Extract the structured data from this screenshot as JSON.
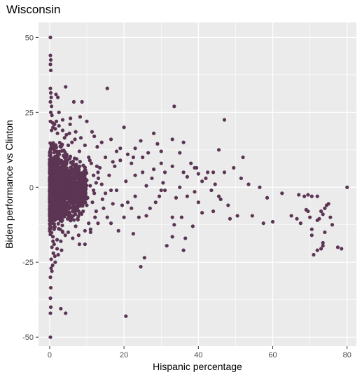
{
  "chart_data": {
    "type": "scatter",
    "title": "Wisconsin",
    "xlabel": "Hispanic percentage",
    "ylabel": "Biden performance vs Clinton",
    "xlim": [
      -3,
      82.5
    ],
    "ylim": [
      -53,
      55
    ],
    "x_ticks": [
      0,
      20,
      40,
      60,
      80
    ],
    "y_ticks": [
      50,
      25,
      0,
      -25,
      -50
    ],
    "x_tick_labels": [
      "0",
      "20",
      "40",
      "60",
      "80"
    ],
    "y_tick_labels": [
      "50",
      "25",
      "0",
      "-25",
      "-50"
    ],
    "grid": true,
    "legend": "none",
    "colors": {
      "panel": "#ebebeb",
      "grid_major": "#ffffff",
      "point": "#5b3553",
      "tick_text": "#4d4d4d",
      "tick_mark": "#333333"
    },
    "points": [
      [
        0.2,
        50
      ],
      [
        0.2,
        44
      ],
      [
        0.3,
        42.5
      ],
      [
        0.2,
        41
      ],
      [
        0.3,
        39
      ],
      [
        0.2,
        33
      ],
      [
        0.3,
        31.5
      ],
      [
        0.4,
        30
      ],
      [
        0.2,
        28.5
      ],
      [
        0.5,
        27
      ],
      [
        0.3,
        25
      ],
      [
        0.6,
        24
      ],
      [
        0.2,
        22
      ],
      [
        0.8,
        21.5
      ],
      [
        0.4,
        -27
      ],
      [
        0.6,
        -28
      ],
      [
        0.2,
        -30
      ],
      [
        0.3,
        -33.5
      ],
      [
        0.2,
        -37
      ],
      [
        0.3,
        -40
      ],
      [
        0.2,
        -42
      ],
      [
        0.2,
        -50
      ],
      [
        0.8,
        -26
      ],
      [
        1.5,
        -25
      ],
      [
        3,
        -40.5
      ],
      [
        4.3,
        -42
      ],
      [
        4.3,
        33.5
      ],
      [
        1.7,
        31
      ],
      [
        2.2,
        30
      ],
      [
        6.5,
        28.5
      ],
      [
        8.7,
        28.5
      ],
      [
        5.6,
        23
      ],
      [
        2.5,
        25
      ],
      [
        3.5,
        22.5
      ],
      [
        8.2,
        23.5
      ],
      [
        10,
        22
      ],
      [
        11.4,
        18.5
      ],
      [
        12,
        17
      ],
      [
        15.5,
        33
      ],
      [
        20,
        20
      ],
      [
        16.5,
        16
      ],
      [
        14,
        15
      ],
      [
        19,
        13
      ],
      [
        21,
        11
      ],
      [
        25,
        10
      ],
      [
        17,
        8.5
      ],
      [
        24.5,
        15.5
      ],
      [
        28,
        18
      ],
      [
        33.5,
        27
      ],
      [
        29,
        14.5
      ],
      [
        30,
        12
      ],
      [
        33,
        16
      ],
      [
        36,
        15
      ],
      [
        35,
        11.5
      ],
      [
        47,
        22.5
      ],
      [
        45.5,
        12.5
      ],
      [
        52,
        10
      ],
      [
        42.5,
        5
      ],
      [
        49.5,
        6.5
      ],
      [
        38,
        8
      ],
      [
        39,
        6.5
      ],
      [
        39.5,
        6.5
      ],
      [
        40,
        4.5
      ],
      [
        44,
        5
      ],
      [
        47,
        5
      ],
      [
        51.5,
        3
      ],
      [
        53.5,
        1
      ],
      [
        56.5,
        0
      ],
      [
        58.5,
        -3.5
      ],
      [
        62.5,
        -2
      ],
      [
        67,
        -2.5
      ],
      [
        68.5,
        -3
      ],
      [
        69.5,
        -2.5
      ],
      [
        70.5,
        -3
      ],
      [
        72,
        -3
      ],
      [
        80,
        0
      ],
      [
        57.5,
        -12
      ],
      [
        65,
        -9.5
      ],
      [
        66.5,
        -10.5
      ],
      [
        67.5,
        -12
      ],
      [
        69,
        -7.5
      ],
      [
        69.5,
        -8
      ],
      [
        70,
        -10
      ],
      [
        70.5,
        -16
      ],
      [
        70.5,
        -14
      ],
      [
        72,
        -11
      ],
      [
        72.5,
        -10.5
      ],
      [
        73,
        -8
      ],
      [
        73.5,
        -9
      ],
      [
        74,
        -7
      ],
      [
        74.5,
        -6
      ],
      [
        75,
        -5.5
      ],
      [
        75.5,
        -10
      ],
      [
        76,
        -12.5
      ],
      [
        74,
        -15
      ],
      [
        73.5,
        -18.5
      ],
      [
        73.5,
        -19.5
      ],
      [
        73,
        -20.5
      ],
      [
        72,
        -21
      ],
      [
        71,
        -22.5
      ],
      [
        77.5,
        -20
      ],
      [
        78.5,
        -20.5
      ],
      [
        60,
        -11.5
      ],
      [
        54.5,
        -9.5
      ],
      [
        50.5,
        -9.5
      ],
      [
        48.5,
        -10.5
      ],
      [
        41,
        -8.5
      ],
      [
        37,
        -3
      ],
      [
        34,
        -3.5
      ],
      [
        33,
        -10
      ],
      [
        33.5,
        -12.5
      ],
      [
        35.5,
        -10
      ],
      [
        36,
        -21
      ],
      [
        38.5,
        -13
      ],
      [
        33,
        -16.5
      ],
      [
        31.5,
        -19.5
      ],
      [
        36.5,
        -17
      ],
      [
        25.5,
        -23.5
      ],
      [
        24.5,
        -26.5
      ],
      [
        20.5,
        -43
      ],
      [
        22.5,
        -15.5
      ],
      [
        18.5,
        -14.5
      ],
      [
        11,
        -14
      ],
      [
        8,
        -19
      ],
      [
        9.5,
        -19
      ],
      [
        11,
        -15
      ],
      [
        27,
        -7
      ],
      [
        28.5,
        -5
      ],
      [
        29.5,
        -3
      ],
      [
        31,
        -1
      ],
      [
        26,
        0.5
      ],
      [
        30.5,
        1.5
      ],
      [
        35,
        0
      ],
      [
        30,
        -1
      ],
      [
        23,
        -3
      ],
      [
        21,
        -5
      ],
      [
        19.5,
        -6
      ],
      [
        17,
        -5.5
      ],
      [
        22,
        -7
      ],
      [
        24,
        -10
      ],
      [
        26,
        -9.5
      ],
      [
        20,
        -10
      ],
      [
        15.5,
        -10
      ],
      [
        13,
        -12
      ],
      [
        16.5,
        -12
      ],
      [
        14.5,
        -7
      ],
      [
        12.5,
        -8
      ],
      [
        18,
        -1
      ],
      [
        20.5,
        2
      ],
      [
        23,
        4
      ],
      [
        27.5,
        3
      ],
      [
        25,
        5
      ],
      [
        22,
        8
      ],
      [
        19,
        9
      ],
      [
        17.5,
        7
      ],
      [
        15,
        10
      ],
      [
        16,
        4
      ],
      [
        13,
        5
      ],
      [
        14,
        1
      ],
      [
        12,
        -2
      ],
      [
        30,
        8
      ],
      [
        28,
        6
      ],
      [
        33,
        7
      ],
      [
        37,
        3.5
      ],
      [
        41,
        2
      ],
      [
        43.5,
        -1
      ],
      [
        45.5,
        -3
      ],
      [
        46,
        -4
      ],
      [
        48,
        -6
      ],
      [
        44,
        -8
      ],
      [
        40,
        -5
      ],
      [
        42,
        3
      ],
      [
        44.5,
        1
      ],
      [
        39,
        -1.5
      ],
      [
        36,
        5
      ],
      [
        31,
        5
      ],
      [
        26.5,
        11.5
      ],
      [
        23,
        13
      ],
      [
        18,
        12
      ],
      [
        22.5,
        10
      ],
      [
        12.8,
        13.5
      ],
      [
        13.5,
        6.5
      ],
      [
        10.8,
        9
      ],
      [
        12.5,
        1.5
      ],
      [
        11.5,
        -5
      ],
      [
        12.2,
        -10
      ],
      [
        15,
        -2
      ],
      [
        16.5,
        -1
      ],
      [
        11.8,
        4
      ],
      [
        10.5,
        -12
      ],
      [
        5,
        -15
      ],
      [
        7,
        -13
      ],
      [
        3,
        -18
      ],
      [
        2,
        -20.5
      ],
      [
        1,
        -22
      ],
      [
        6,
        15
      ],
      [
        8,
        12
      ],
      [
        9.5,
        14
      ],
      [
        4.5,
        17.5
      ],
      [
        7,
        18.5
      ],
      [
        3.5,
        19
      ],
      [
        2.5,
        20.5
      ],
      [
        1.5,
        19.5
      ],
      [
        5.5,
        21
      ],
      [
        6.8,
        16
      ],
      [
        9,
        -8
      ],
      [
        10,
        -6
      ],
      [
        9.8,
        5
      ],
      [
        9.2,
        -2
      ],
      [
        3.2,
        -21
      ],
      [
        4.2,
        -16
      ],
      [
        2.8,
        -14
      ],
      [
        6.2,
        -17
      ],
      [
        7.8,
        -16
      ],
      [
        2,
        -17.5
      ],
      [
        1.2,
        -19
      ],
      [
        0.6,
        -20
      ],
      [
        0.9,
        -18
      ],
      [
        1.8,
        22
      ],
      [
        1.3,
        21
      ],
      [
        0.9,
        20
      ],
      [
        0.5,
        19
      ],
      [
        2.1,
        18
      ],
      [
        4,
        16.5
      ],
      [
        5,
        14
      ],
      [
        10.5,
        10
      ],
      [
        11.2,
        8
      ],
      [
        9.5,
        -14.5
      ],
      [
        7.5,
        -10.5
      ],
      [
        14.2,
        -4
      ],
      [
        11.8,
        -1
      ],
      [
        13.1,
        3
      ],
      [
        10.9,
        0.5
      ],
      [
        12.7,
        7
      ],
      [
        10.2,
        -3.5
      ],
      [
        1.4,
        -23
      ],
      [
        0.4,
        -24
      ],
      [
        2.3,
        -22.5
      ],
      [
        5.3,
        18
      ],
      [
        8.4,
        16.5
      ]
    ],
    "dense_cluster": {
      "x_range": [
        0,
        10
      ],
      "y_profile": [
        [
          0,
          20
        ],
        [
          1.5,
          19
        ],
        [
          3,
          17
        ],
        [
          4.5,
          15
        ],
        [
          6,
          13.5
        ],
        [
          7.5,
          12
        ],
        [
          9,
          11
        ],
        [
          10,
          10
        ]
      ],
      "y_profile_lower": [
        [
          0,
          -21
        ],
        [
          1.5,
          -20
        ],
        [
          3,
          -18
        ],
        [
          4.5,
          -16
        ],
        [
          6,
          -14
        ],
        [
          7.5,
          -12.5
        ],
        [
          9,
          -11.5
        ],
        [
          10,
          -10.5
        ]
      ]
    }
  }
}
